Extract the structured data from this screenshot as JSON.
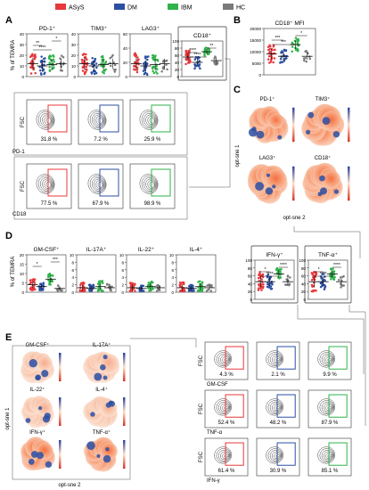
{
  "legend": [
    {
      "label": "ASyS",
      "color": "#e8383d"
    },
    {
      "label": "DM",
      "color": "#2c4fa3"
    },
    {
      "label": "IBM",
      "color": "#2fb34a"
    },
    {
      "label": "HC",
      "color": "#7a7a7a"
    }
  ],
  "panel_letters": {
    "a": "A",
    "b": "B",
    "c": "C",
    "d": "D",
    "e": "E"
  },
  "panelA": {
    "ylabel": "% of TEMRA",
    "plots": [
      {
        "title": "PD-1⁺",
        "yticks": [
          "40",
          "30",
          "20",
          "10",
          "0"
        ],
        "sig": [
          "*",
          "**",
          "****"
        ]
      },
      {
        "title": "TIM3⁺",
        "yticks": [
          "40",
          "30",
          "20",
          "10",
          "0"
        ],
        "sig": []
      },
      {
        "title": "LAG3⁺",
        "yticks": [
          "60",
          "40",
          "20",
          "0"
        ],
        "sig": []
      },
      {
        "title": "CD18⁺",
        "yticks": [
          "100",
          "80",
          "60",
          "40",
          "20",
          "0"
        ],
        "sig": [
          "**",
          "****",
          "****"
        ]
      }
    ],
    "facs_row1": {
      "x_axis": "PD-1",
      "y_axis": "FSC",
      "values": [
        "31.8 %",
        "7.2 %",
        "25.9 %"
      ]
    },
    "facs_row2": {
      "x_axis": "CD18",
      "y_axis": "FSC",
      "values": [
        "77.5 %",
        "67.9 %",
        "98.9 %"
      ]
    }
  },
  "panelB": {
    "title": "CD18⁺ MFI",
    "yticks": [
      "20000",
      "15000",
      "10000",
      "5000",
      "0"
    ],
    "sig": [
      "*",
      "***",
      "***"
    ]
  },
  "panelC": {
    "maps": [
      "PD-1⁺",
      "TIM3⁺",
      "LAG3⁺",
      "CD18⁺"
    ],
    "x_axis": "opt-sne 2",
    "y_axis": "opt-sne 1"
  },
  "panelD": {
    "ylabel": "% of TEMRA",
    "plots": [
      {
        "title": "GM-CSF⁺",
        "yticks": [
          "20",
          "15",
          "10",
          "5",
          "0"
        ],
        "sig": [
          "***",
          "*"
        ]
      },
      {
        "title": "IL-17A⁺",
        "yticks": [
          "10",
          "8",
          "6",
          "4",
          "2",
          "0"
        ],
        "sig": []
      },
      {
        "title": "IL-22⁺",
        "yticks": [
          "10",
          "8",
          "6",
          "4",
          "2",
          "0"
        ],
        "sig": []
      },
      {
        "title": "IL-4⁺",
        "yticks": [
          "10",
          "8",
          "6",
          "4",
          "2",
          "0"
        ],
        "sig": []
      },
      {
        "title": "IFN-γ⁺",
        "yticks": [
          "100",
          "80",
          "60",
          "40",
          "20",
          "0"
        ],
        "sig": [
          "****",
          "*",
          "****"
        ]
      },
      {
        "title": "TNF-α⁺",
        "yticks": [
          "100",
          "80",
          "60",
          "40",
          "20",
          "0"
        ],
        "sig": [
          "****",
          "*",
          "****"
        ]
      }
    ]
  },
  "panelE": {
    "maps": [
      "GM-CSF⁺",
      "IL-17A⁺",
      "IL-22⁺",
      "IL-4⁺",
      "IFN-γ⁺",
      "TNF-α⁺"
    ],
    "x_axis": "opt-sne 2",
    "y_axis": "opt-sne 1",
    "facs_rows": [
      {
        "x_axis": "GM-CSF",
        "y_axis": "FSC",
        "values": [
          "4.3 %",
          "2.1 %",
          "9.9 %"
        ]
      },
      {
        "x_axis": "TNF-α",
        "y_axis": "FSC",
        "values": [
          "52.4 %",
          "48.2 %",
          "87.9 %"
        ]
      },
      {
        "x_axis": "IFN-γ",
        "y_axis": "FSC",
        "values": [
          "61.4 %",
          "30.9 %",
          "85.1 %"
        ]
      }
    ]
  }
}
